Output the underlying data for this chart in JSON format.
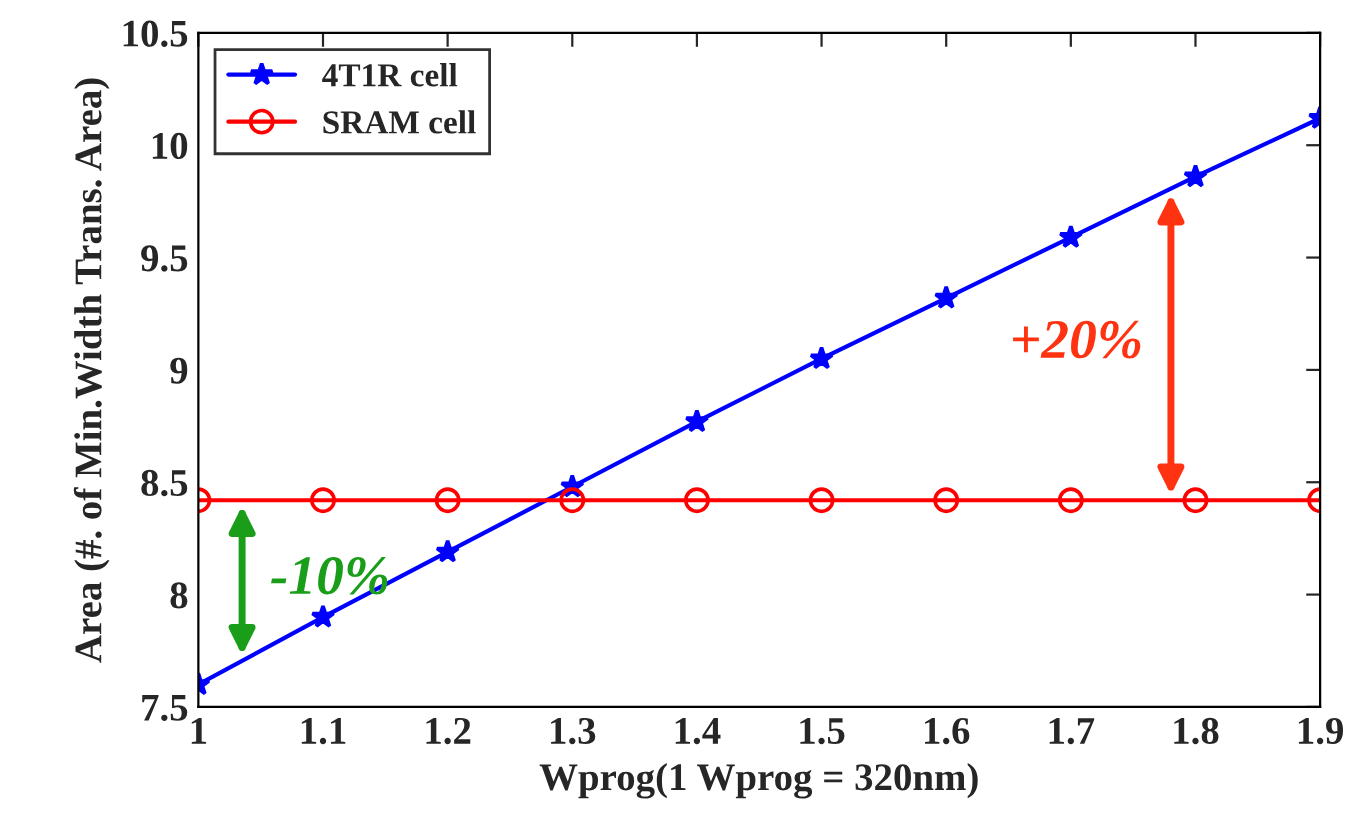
{
  "chart_data": {
    "type": "line",
    "xlabel": "Wprog(1 Wprog = 320nm)",
    "ylabel": "Area (#. of Min.Width Trans. Area)",
    "x": [
      1,
      1.1,
      1.2,
      1.3,
      1.4,
      1.5,
      1.6,
      1.7,
      1.8,
      1.9
    ],
    "series": [
      {
        "name": "4T1R cell",
        "color": "#0000ff",
        "marker": "star",
        "values": [
          7.6,
          7.9,
          8.19,
          8.48,
          8.77,
          9.05,
          9.32,
          9.59,
          9.86,
          10.12
        ]
      },
      {
        "name": "SRAM cell",
        "color": "#ff0000",
        "marker": "circle",
        "values": [
          8.42,
          8.42,
          8.42,
          8.42,
          8.42,
          8.42,
          8.42,
          8.42,
          8.42,
          8.42
        ]
      }
    ],
    "xlim": [
      1,
      1.9
    ],
    "xticks": [
      1,
      1.1,
      1.2,
      1.3,
      1.4,
      1.5,
      1.6,
      1.7,
      1.8,
      1.9
    ],
    "ylim": [
      7.5,
      10.5
    ],
    "yticks": [
      7.5,
      8,
      8.5,
      9,
      9.5,
      10,
      10.5
    ],
    "annotations": [
      "-10%",
      "+20%"
    ],
    "legend": "top left",
    "grid": false,
    "line_style": "solid"
  }
}
